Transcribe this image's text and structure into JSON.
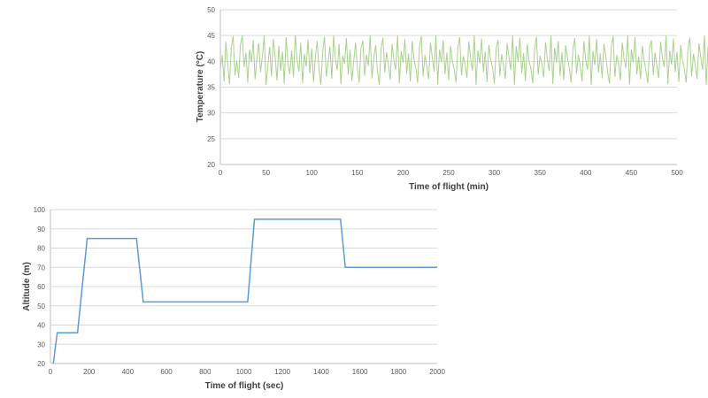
{
  "chart_data": [
    {
      "id": "temperature",
      "type": "line",
      "title": "",
      "xlabel": "Time of flight (min)",
      "ylabel": "Temperature (°C)",
      "xlim": [
        0,
        500
      ],
      "ylim": [
        20,
        50
      ],
      "xticks": [
        0,
        50,
        100,
        150,
        200,
        250,
        300,
        350,
        400,
        450,
        500
      ],
      "yticks": [
        20,
        25,
        30,
        35,
        40,
        45,
        50
      ],
      "grid": true,
      "legend": "none",
      "color": "#a9d18e",
      "series": [
        {
          "x_start": 0,
          "x_step": 2,
          "values": [
            38.5,
            41.2,
            36.1,
            43.8,
            39.4,
            35.6,
            42.7,
            44.9,
            37.3,
            40.1,
            36.8,
            43.2,
            45.0,
            38.9,
            41.7,
            35.9,
            42.3,
            39.8,
            44.1,
            36.5,
            40.6,
            43.5,
            37.9,
            41.0,
            45.0,
            35.4,
            39.2,
            42.8,
            37.1,
            44.4,
            40.9,
            36.3,
            43.0,
            38.2,
            41.9,
            35.7,
            44.7,
            39.6,
            37.5,
            42.1,
            36.9,
            45.0,
            40.3,
            38.0,
            43.6,
            35.8,
            41.4,
            39.0,
            44.2,
            37.7,
            42.5,
            36.0,
            40.8,
            43.9,
            38.6,
            35.5,
            41.6,
            44.8,
            37.0,
            39.9,
            42.9,
            36.6,
            45.0,
            40.4,
            38.3,
            43.3,
            35.6,
            41.1,
            39.5,
            44.5,
            37.4,
            42.2,
            36.2,
            40.0,
            43.7,
            38.8,
            35.9,
            42.6,
            44.0,
            37.2,
            41.3,
            39.1,
            45.0,
            36.7,
            40.7,
            43.1,
            38.1,
            35.5,
            42.4,
            44.6,
            37.8,
            41.8,
            39.3,
            36.4,
            43.4,
            40.2,
            38.4,
            45.0,
            35.7,
            42.0,
            39.7,
            44.3,
            37.6,
            41.5,
            36.1,
            43.9,
            40.5,
            38.7,
            35.8,
            42.8,
            44.9,
            37.0,
            41.2,
            39.0,
            36.5,
            43.6,
            40.9,
            38.0,
            45.0,
            35.6,
            42.3,
            39.8,
            44.1,
            37.5,
            41.7,
            36.3,
            43.0,
            40.1,
            38.5,
            35.9,
            42.7,
            44.7,
            37.3,
            41.0,
            39.4,
            36.8,
            43.8,
            40.6,
            38.2,
            45.0,
            35.4,
            42.1,
            39.6,
            44.4,
            37.9,
            41.9,
            36.0,
            43.2,
            40.3,
            38.9,
            35.7,
            42.5,
            44.2,
            37.1,
            41.4,
            39.2,
            36.6,
            43.5,
            40.8,
            38.3,
            45.0,
            35.5,
            42.9,
            39.9,
            44.6,
            37.7,
            41.6,
            36.2,
            43.3,
            40.0,
            38.6,
            35.8,
            42.2,
            44.8,
            37.4,
            41.1,
            39.5,
            36.9,
            43.7,
            40.4,
            38.1,
            45.0,
            35.6,
            42.6,
            39.7,
            44.0,
            37.2,
            41.8,
            36.4,
            43.1,
            40.7,
            38.8,
            35.9,
            42.4,
            44.5,
            37.6,
            41.3,
            39.1,
            36.1,
            43.9,
            40.2,
            38.4,
            45.0,
            35.4,
            42.0,
            39.3,
            44.3,
            37.8,
            41.5,
            36.7,
            43.4,
            40.9,
            38.0,
            35.7,
            42.8,
            44.9,
            37.0,
            41.2,
            39.6,
            36.3,
            43.6,
            40.5,
            38.7,
            45.0,
            35.5,
            42.3,
            39.8,
            44.7,
            37.5,
            41.0,
            36.5,
            43.0,
            40.1,
            38.2,
            35.8,
            42.7,
            44.1,
            37.3,
            41.7,
            39.0,
            36.8,
            43.8,
            40.6,
            38.9,
            45.0,
            35.6,
            42.1,
            39.4,
            44.4,
            37.9,
            41.9,
            36.0,
            43.2,
            40.3,
            38.5,
            35.9,
            42.5,
            44.6,
            37.1,
            41.4,
            39.2,
            36.6,
            43.5,
            40.8,
            38.3,
            45.0,
            35.4,
            42.9,
            39.9,
            44.2,
            37.7,
            41.6,
            36.2,
            43.3,
            40.0,
            38.6,
            35.7,
            42.2,
            44.8,
            37.4,
            41.1,
            39.5,
            36.9,
            43.7,
            40.4,
            38.1,
            45.0,
            38.0
          ]
        }
      ]
    },
    {
      "id": "altitude",
      "type": "line",
      "title": "",
      "xlabel": "Time of flight (sec)",
      "ylabel": "Altitude (m)",
      "xlim": [
        0,
        2000
      ],
      "ylim": [
        20,
        100
      ],
      "xticks": [
        0,
        200,
        400,
        600,
        800,
        1000,
        1200,
        1400,
        1600,
        1800,
        2000
      ],
      "yticks": [
        20,
        30,
        40,
        50,
        60,
        70,
        80,
        90,
        100
      ],
      "grid": true,
      "legend": "none",
      "color": "#5b9bd5",
      "series": [
        {
          "x": [
            15,
            35,
            140,
            190,
            445,
            480,
            1020,
            1055,
            1500,
            1525,
            2000
          ],
          "values": [
            20,
            36,
            36,
            85,
            85,
            52,
            52,
            95,
            95,
            70,
            70
          ]
        }
      ]
    }
  ]
}
